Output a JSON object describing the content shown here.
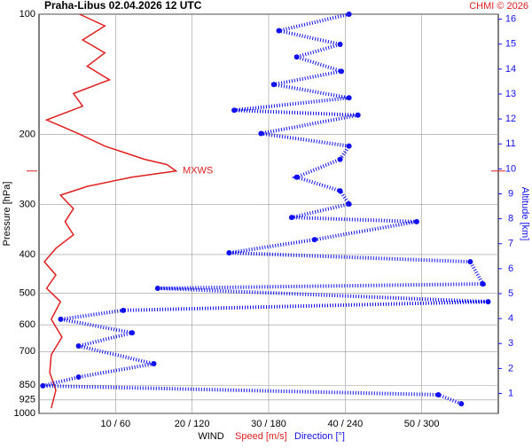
{
  "chart_data": {
    "type": "profile",
    "title": "Praha-Libus    02.04.2026 12 UTC",
    "credit": "CHMI © 2026",
    "ylabel": "Pressure [hPa]",
    "y2label": "Altitude [km]",
    "xlabel": "WIND",
    "ylim": [
      100,
      1000
    ],
    "ylog": true,
    "yinvert": true,
    "yticks": [
      100,
      200,
      300,
      400,
      500,
      600,
      700,
      850,
      925,
      1000
    ],
    "y2lim": [
      0.2,
      16.2
    ],
    "y2ticks": [
      1,
      2,
      3,
      4,
      5,
      6,
      7,
      8,
      9,
      10,
      11,
      12,
      13,
      14,
      15,
      16
    ],
    "xlim": [
      0,
      60
    ],
    "x2lim": [
      0,
      360
    ],
    "xticks": [
      {
        "value": 10,
        "label": "10 / 60"
      },
      {
        "value": 20,
        "label": "20 / 120"
      },
      {
        "value": 30,
        "label": "30 / 180"
      },
      {
        "value": 40,
        "label": "40 / 240"
      },
      {
        "value": 50,
        "label": "50 / 300"
      }
    ],
    "grid": true,
    "annotation": {
      "text": "MXWS",
      "pressure": 247,
      "color": "#e02020"
    },
    "series": [
      {
        "name": "Speed [m/s]",
        "color": "#e02020",
        "pressure": [
          100,
          107,
          116,
          125,
          135,
          146,
          158,
          170,
          184,
          199,
          214,
          231,
          238,
          247,
          256,
          270,
          284,
          307,
          331,
          357,
          386,
          417,
          450,
          486,
          525,
          581,
          644,
          713,
          790,
          875,
          970
        ],
        "values": [
          5.3,
          8.6,
          5.7,
          8.6,
          6.3,
          9.2,
          4.5,
          5.7,
          1.0,
          5.1,
          8.6,
          13.8,
          16.7,
          17.9,
          12.1,
          6.3,
          2.8,
          4.5,
          3.4,
          4.5,
          2.2,
          0.7,
          2.2,
          1.0,
          2.8,
          1.6,
          3.0,
          1.6,
          1.4,
          2.2,
          1.6
        ]
      },
      {
        "name": "Direction [°]",
        "color": "#1010f0",
        "axis": "x2",
        "pressure": [
          100,
          110,
          119,
          128,
          139,
          150,
          162,
          174,
          179,
          199,
          214,
          231,
          256,
          277,
          299,
          323,
          331,
          367,
          396,
          417,
          474,
          486,
          525,
          552,
          581,
          628,
          678,
          751,
          811,
          853,
          898,
          946
        ],
        "values": [
          243,
          188,
          236,
          202,
          237,
          184,
          243,
          153,
          250,
          174,
          243,
          236,
          202,
          236,
          243,
          198,
          296,
          216,
          149,
          338,
          348,
          93,
          352,
          66,
          17,
          73,
          31,
          90,
          31,
          3,
          313,
          331
        ]
      }
    ]
  }
}
